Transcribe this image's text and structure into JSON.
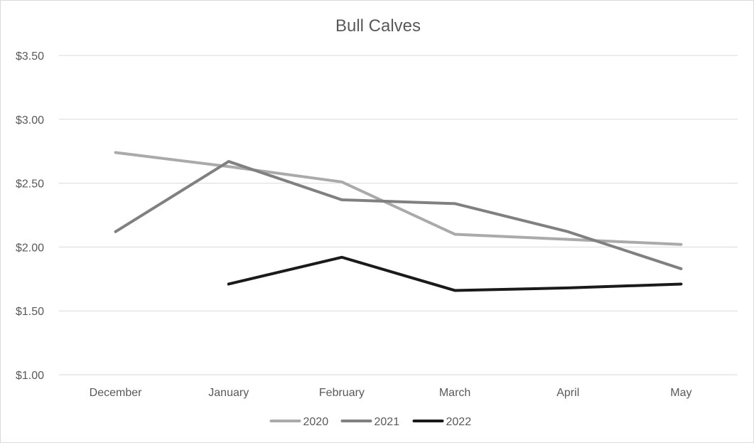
{
  "chart_data": {
    "type": "line",
    "title": "Bull Calves",
    "xlabel": "",
    "ylabel": "",
    "categories": [
      "December",
      "January",
      "February",
      "March",
      "April",
      "May"
    ],
    "y_ticks": [
      "$1.00",
      "$1.50",
      "$2.00",
      "$2.50",
      "$3.00",
      "$3.50"
    ],
    "ylim": [
      1.0,
      3.5
    ],
    "grid": true,
    "legend_position": "bottom",
    "series": [
      {
        "name": "2020",
        "color": "#aaaaaa",
        "values": [
          2.74,
          2.63,
          2.51,
          2.1,
          2.06,
          2.02
        ]
      },
      {
        "name": "2021",
        "color": "#808080",
        "values": [
          2.12,
          2.67,
          2.37,
          2.34,
          2.12,
          1.83
        ]
      },
      {
        "name": "2022",
        "color": "#1a1a1a",
        "values": [
          null,
          1.71,
          1.92,
          1.66,
          1.68,
          1.71
        ]
      }
    ]
  }
}
